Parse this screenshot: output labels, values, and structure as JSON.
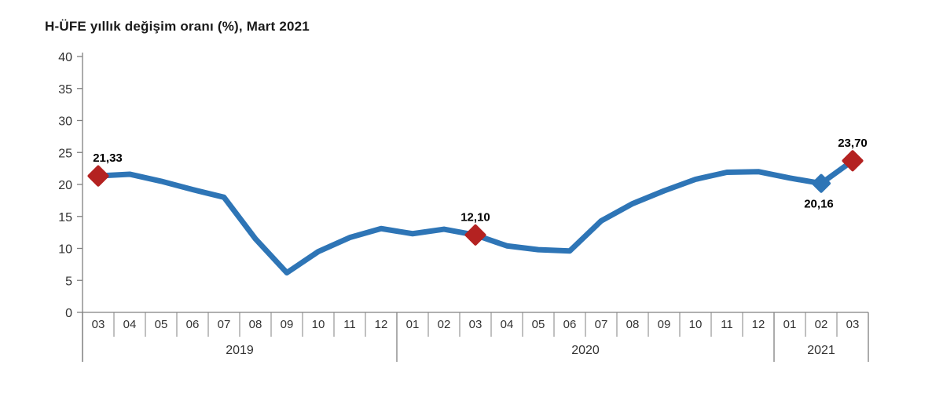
{
  "title": "H-ÜFE yıllık değişim oranı (%), Mart 2021",
  "chart_data": {
    "type": "line",
    "title": "H-ÜFE yıllık değişim oranı (%), Mart 2021",
    "ylabel": "",
    "xlabel": "",
    "ylim": [
      0,
      40
    ],
    "yticks": [
      0,
      5,
      10,
      15,
      20,
      25,
      30,
      35,
      40
    ],
    "grid": false,
    "legend": "none",
    "line_color": "#2E75B6",
    "highlight_color": "#B42221",
    "axis_color": "#808080",
    "x_groups": [
      {
        "year": "2019",
        "months": [
          "03",
          "04",
          "05",
          "06",
          "07",
          "08",
          "09",
          "10",
          "11",
          "12"
        ]
      },
      {
        "year": "2020",
        "months": [
          "01",
          "02",
          "03",
          "04",
          "05",
          "06",
          "07",
          "08",
          "09",
          "10",
          "11",
          "12"
        ]
      },
      {
        "year": "2021",
        "months": [
          "01",
          "02",
          "03"
        ]
      }
    ],
    "series": [
      {
        "name": "H-ÜFE yıllık değişim oranı (%)",
        "values": [
          21.33,
          21.6,
          20.5,
          19.2,
          18.0,
          11.5,
          6.2,
          9.5,
          11.7,
          13.1,
          12.3,
          13.0,
          12.1,
          10.4,
          9.8,
          9.6,
          14.3,
          17.0,
          19.0,
          20.8,
          21.9,
          22.0,
          21.0,
          20.16,
          23.7
        ]
      }
    ],
    "annotations": [
      {
        "index": 0,
        "label": "21,33",
        "value": 21.33,
        "marker": "diamond",
        "marker_color": "#B42221",
        "label_position": "above",
        "dx": 12
      },
      {
        "index": 12,
        "label": "12,10",
        "value": 12.1,
        "marker": "diamond",
        "marker_color": "#B42221",
        "label_position": "above",
        "dx": 0
      },
      {
        "index": 23,
        "label": "20,16",
        "value": 20.16,
        "marker": "diamond",
        "marker_color": "#2E75B6",
        "label_position": "below",
        "dx": -3
      },
      {
        "index": 24,
        "label": "23,70",
        "value": 23.7,
        "marker": "diamond",
        "marker_color": "#B42221",
        "label_position": "above",
        "dx": 0
      }
    ]
  }
}
